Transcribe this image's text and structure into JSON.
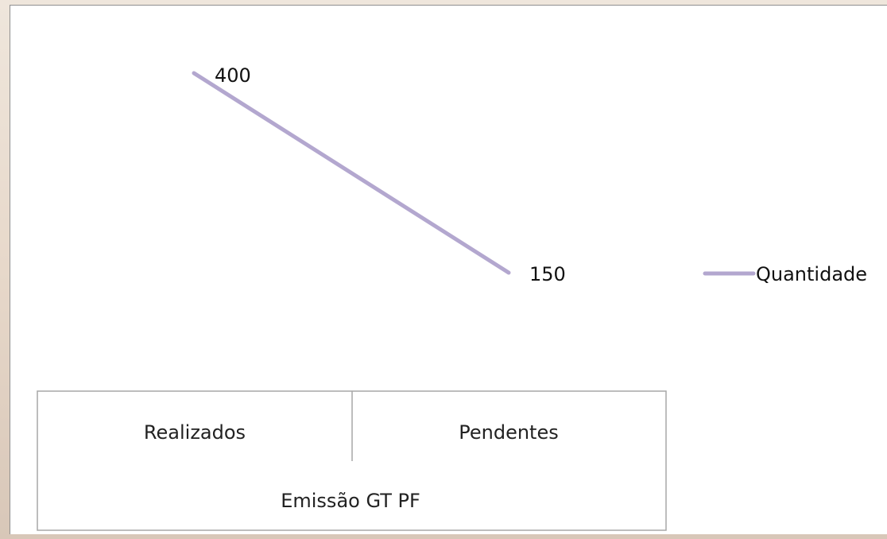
{
  "chart_data": {
    "type": "line",
    "title": "",
    "xlabel": "Emissão GT PF",
    "ylabel": "",
    "categories": [
      "Realizados",
      "Pendentes"
    ],
    "series": [
      {
        "name": "Quantidade",
        "values": [
          400,
          150
        ],
        "color": "#b3a7cf"
      }
    ],
    "ylim": [
      0,
      400
    ],
    "grid": false,
    "legend": "right"
  }
}
